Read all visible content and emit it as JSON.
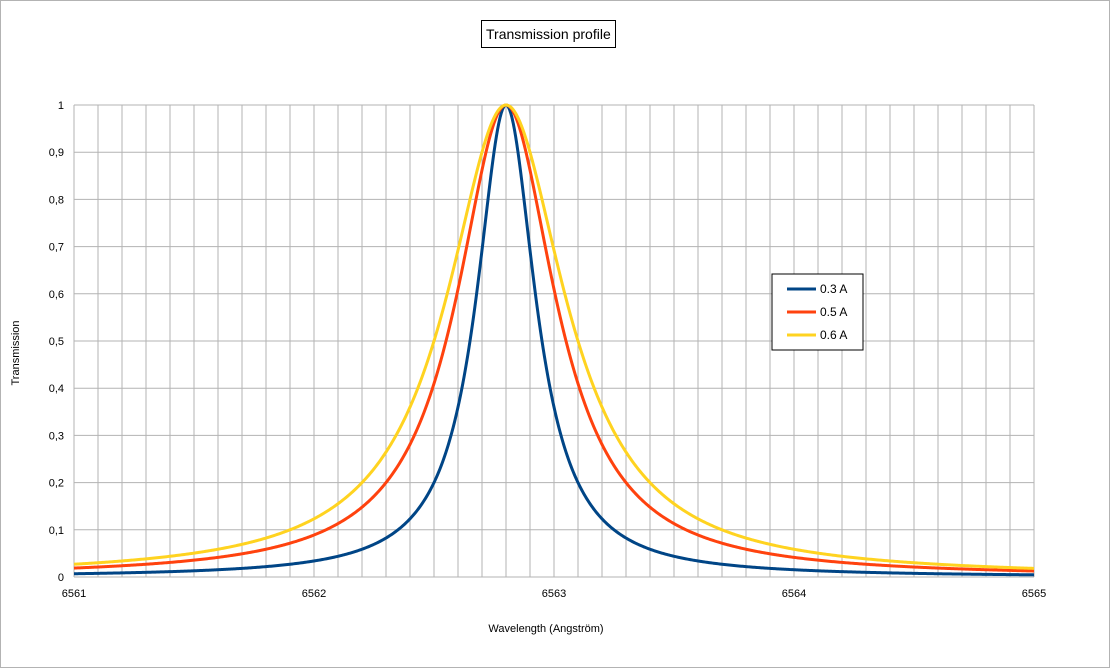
{
  "chart_data": {
    "type": "line",
    "title": "Transmission profile",
    "xlabel": "Wavelength (Angström)",
    "ylabel": "Transmission",
    "xlim": [
      6561,
      6565
    ],
    "ylim": [
      0,
      1
    ],
    "x_ticks": [
      "6561",
      "6562",
      "6563",
      "6564",
      "6565"
    ],
    "y_ticks": [
      "0",
      "0,1",
      "0,2",
      "0,3",
      "0,4",
      "0,5",
      "0,6",
      "0,7",
      "0,8",
      "0,9",
      "1"
    ],
    "grid": true,
    "legend_position": "right",
    "center_wavelength": 6562.8,
    "series": [
      {
        "name": "0.3 A",
        "fwhm": 0.3,
        "color": "#004586",
        "x": [
          6561,
          6561.5,
          6562,
          6562.3,
          6562.5,
          6562.6,
          6562.7,
          6562.8,
          6562.9,
          6563,
          6563.1,
          6563.3,
          6563.6,
          6564,
          6564.5,
          6565
        ],
        "values": [
          0.007,
          0.011,
          0.034,
          0.084,
          0.2,
          0.36,
          0.69,
          1.0,
          0.69,
          0.36,
          0.2,
          0.084,
          0.036,
          0.015,
          0.008,
          0.005
        ]
      },
      {
        "name": "0.5 A",
        "fwhm": 0.5,
        "color": "#ff420e",
        "x": [
          6561,
          6561.5,
          6562,
          6562.3,
          6562.5,
          6562.6,
          6562.7,
          6562.8,
          6562.9,
          6563,
          6563.1,
          6563.3,
          6563.6,
          6564,
          6564.5,
          6565
        ],
        "values": [
          0.019,
          0.036,
          0.089,
          0.2,
          0.41,
          0.61,
          0.86,
          1.0,
          0.86,
          0.61,
          0.41,
          0.2,
          0.089,
          0.042,
          0.021,
          0.013
        ]
      },
      {
        "name": "0.6 A",
        "fwhm": 0.6,
        "color": "#ffd320",
        "x": [
          6561,
          6561.5,
          6562,
          6562.3,
          6562.5,
          6562.6,
          6562.7,
          6562.8,
          6562.9,
          6563,
          6563.1,
          6563.3,
          6563.6,
          6564,
          6564.5,
          6565
        ],
        "values": [
          0.027,
          0.051,
          0.123,
          0.265,
          0.5,
          0.69,
          0.9,
          1.0,
          0.9,
          0.69,
          0.5,
          0.265,
          0.123,
          0.059,
          0.03,
          0.018
        ]
      }
    ]
  }
}
